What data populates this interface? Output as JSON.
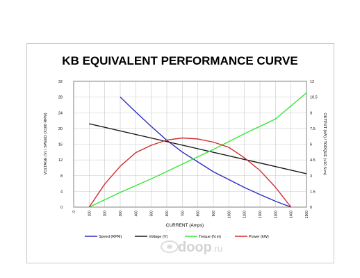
{
  "chart_data": {
    "type": "line",
    "title": "KB EQUIVALENT PERFORMANCE CURVE",
    "xlabel": "CURRENT (Amps)",
    "ylabel_left": "VOLTAGE (V) / SPEED (X100 RPM)",
    "ylabel_right": "OUTPUT (kW) / TORQUE (x10 N.m)",
    "xlim": [
      0,
      1500
    ],
    "x_ticks": [
      "0",
      "100",
      "200",
      "300",
      "400",
      "500",
      "600",
      "700",
      "800",
      "900",
      "1000",
      "1100",
      "1200",
      "1300",
      "1400",
      "1500"
    ],
    "ylim_left": [
      0,
      32
    ],
    "y_ticks_left": [
      "0",
      "4",
      "8",
      "12",
      "16",
      "20",
      "24",
      "28",
      "32"
    ],
    "ylim_right": [
      0,
      12
    ],
    "y_ticks_right": [
      "0",
      "1.5",
      "3",
      "4.5",
      "6",
      "7.5",
      "9",
      "10.5",
      "12"
    ],
    "grid": true,
    "legend_position": "bottom",
    "series": [
      {
        "name": "Speed (RPM)",
        "axis": "left",
        "color": "#2b2bc4",
        "x": [
          300,
          400,
          500,
          600,
          700,
          800,
          900,
          1000,
          1100,
          1200,
          1300,
          1400
        ],
        "y": [
          28,
          24.2,
          20.5,
          17,
          14,
          11.5,
          9,
          7,
          5,
          3.2,
          1.5,
          0
        ]
      },
      {
        "name": "Voltage (V)",
        "axis": "left",
        "color": "#1a1a1a",
        "x": [
          100,
          1500
        ],
        "y": [
          21.2,
          8.5
        ]
      },
      {
        "name": "Torque (N.m)",
        "axis": "right",
        "color": "#33e833",
        "x": [
          100,
          300,
          500,
          700,
          900,
          1100,
          1300,
          1500
        ],
        "y": [
          0,
          1.4,
          2.7,
          4.1,
          5.5,
          7.0,
          8.4,
          10.9
        ]
      },
      {
        "name": "Power (kW)",
        "axis": "right",
        "color": "#d42a2a",
        "x": [
          100,
          200,
          300,
          400,
          500,
          600,
          700,
          800,
          900,
          1000,
          1100,
          1200,
          1300,
          1400
        ],
        "y": [
          0,
          2.2,
          3.9,
          5.2,
          5.9,
          6.4,
          6.6,
          6.5,
          6.2,
          5.7,
          4.7,
          3.5,
          1.9,
          0
        ]
      }
    ]
  },
  "watermark": {
    "brand": "doop",
    "domain": ".ru"
  }
}
